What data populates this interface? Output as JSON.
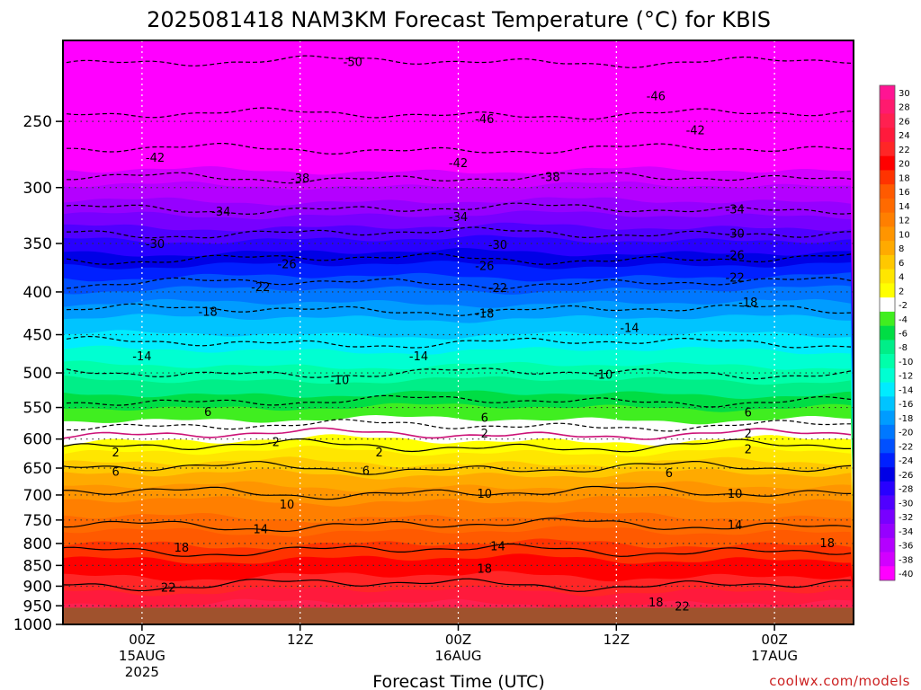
{
  "chart_data": {
    "type": "heatmap",
    "title": "2025081418 NAM3KM Forecast Temperature (°C) for KBIS",
    "xlabel": "Forecast Time (UTC)",
    "ylabel": "",
    "y_scale": "log",
    "ylim": [
      200,
      1000
    ],
    "y_ticks": [
      250,
      300,
      350,
      400,
      450,
      500,
      550,
      600,
      650,
      700,
      750,
      800,
      850,
      900,
      950,
      1000
    ],
    "x_ticks": [
      {
        "line1": "00Z",
        "line2": "15AUG",
        "line3": "2025"
      },
      {
        "line1": "12Z",
        "line2": "",
        "line3": ""
      },
      {
        "line1": "00Z",
        "line2": "16AUG",
        "line3": ""
      },
      {
        "line1": "12Z",
        "line2": "",
        "line3": ""
      },
      {
        "line1": "00Z",
        "line2": "17AUG",
        "line3": ""
      }
    ],
    "x_hours": [
      0,
      12,
      24,
      36,
      48
    ],
    "xlim": [
      -6,
      54
    ],
    "surface_pressure": 955,
    "ground_color": "#a0522d",
    "grid": true,
    "colorbar": {
      "labels": [
        "30",
        "28",
        "26",
        "24",
        "22",
        "20",
        "18",
        "16",
        "14",
        "12",
        "10",
        "8",
        "6",
        "4",
        "2",
        "-2",
        "-4",
        "-6",
        "-8",
        "-10",
        "-12",
        "-14",
        "-16",
        "-18",
        "-20",
        "-22",
        "-24",
        "-26",
        "-28",
        "-30",
        "-32",
        "-34",
        "-36",
        "-38",
        "-40"
      ],
      "colors": [
        "#ff1493",
        "#ff1a6e",
        "#ff2050",
        "#ff1a3c",
        "#ff2626",
        "#ff0000",
        "#ff3300",
        "#ff5a00",
        "#ff6a00",
        "#ff7f00",
        "#ff9500",
        "#ffaa00",
        "#ffc800",
        "#ffe600",
        "#ffff00",
        "#ffffff",
        "#40ee20",
        "#00dd44",
        "#00ee88",
        "#00ffaa",
        "#00ffd2",
        "#00ecff",
        "#00c4ff",
        "#009cff",
        "#0078ff",
        "#0050ff",
        "#0020ff",
        "#0000e6",
        "#2800ff",
        "#5000ff",
        "#7800ff",
        "#9600ff",
        "#b400ff",
        "#d200ff",
        "#ff00ff"
      ]
    },
    "contours": [
      {
        "value": "-50",
        "pressure": 212,
        "dashed": true
      },
      {
        "value": "-46",
        "pressure": 245,
        "dashed": true
      },
      {
        "value": "-42",
        "pressure": 270,
        "dashed": true
      },
      {
        "value": "-38",
        "pressure": 292,
        "dashed": true
      },
      {
        "value": "-34",
        "pressure": 318,
        "dashed": true
      },
      {
        "value": "-30",
        "pressure": 340,
        "dashed": true
      },
      {
        "value": "-26",
        "pressure": 365,
        "dashed": true
      },
      {
        "value": "-22",
        "pressure": 390,
        "dashed": true
      },
      {
        "value": "-18",
        "pressure": 420,
        "dashed": true
      },
      {
        "value": "-14",
        "pressure": 460,
        "dashed": true
      },
      {
        "value": "-10",
        "pressure": 500,
        "dashed": true
      },
      {
        "value": "-6",
        "pressure": 540,
        "dashed": true
      },
      {
        "value": "-2",
        "pressure": 578,
        "dashed": true
      },
      {
        "value": "0",
        "pressure": 592,
        "dashed": false,
        "freezing": true
      },
      {
        "value": "2",
        "pressure": 612,
        "dashed": false
      },
      {
        "value": "6",
        "pressure": 650,
        "dashed": false
      },
      {
        "value": "10",
        "pressure": 695,
        "dashed": false
      },
      {
        "value": "14",
        "pressure": 760,
        "dashed": false
      },
      {
        "value": "18",
        "pressure": 815,
        "dashed": false
      },
      {
        "value": "22",
        "pressure": 895,
        "dashed": false
      }
    ],
    "contour_labels": [
      {
        "text": "-50",
        "hour": 16,
        "pressure": 212
      },
      {
        "text": "-46",
        "hour": 26,
        "pressure": 248
      },
      {
        "text": "-46",
        "hour": 39,
        "pressure": 233
      },
      {
        "text": "-42",
        "hour": 1,
        "pressure": 276
      },
      {
        "text": "-42",
        "hour": 24,
        "pressure": 280
      },
      {
        "text": "-42",
        "hour": 42,
        "pressure": 256
      },
      {
        "text": "-38",
        "hour": 12,
        "pressure": 292
      },
      {
        "text": "-38",
        "hour": 31,
        "pressure": 291
      },
      {
        "text": "-34",
        "hour": 6,
        "pressure": 320
      },
      {
        "text": "-34",
        "hour": 24,
        "pressure": 325
      },
      {
        "text": "-34",
        "hour": 45,
        "pressure": 318
      },
      {
        "text": "-30",
        "hour": 1,
        "pressure": 350
      },
      {
        "text": "-30",
        "hour": 27,
        "pressure": 351
      },
      {
        "text": "-30",
        "hour": 45,
        "pressure": 340
      },
      {
        "text": "-26",
        "hour": 11,
        "pressure": 370
      },
      {
        "text": "-26",
        "hour": 26,
        "pressure": 372
      },
      {
        "text": "-26",
        "hour": 45,
        "pressure": 361
      },
      {
        "text": "-22",
        "hour": 9,
        "pressure": 394
      },
      {
        "text": "-22",
        "hour": 27,
        "pressure": 395
      },
      {
        "text": "-22",
        "hour": 45,
        "pressure": 384
      },
      {
        "text": "-18",
        "hour": 5,
        "pressure": 422
      },
      {
        "text": "-18",
        "hour": 26,
        "pressure": 424
      },
      {
        "text": "-18",
        "hour": 46,
        "pressure": 411
      },
      {
        "text": "-14",
        "hour": 0,
        "pressure": 477
      },
      {
        "text": "-14",
        "hour": 21,
        "pressure": 477
      },
      {
        "text": "-14",
        "hour": 37,
        "pressure": 441
      },
      {
        "text": "-10",
        "hour": 15,
        "pressure": 509
      },
      {
        "text": "-10",
        "hour": 35,
        "pressure": 502
      },
      {
        "text": "6",
        "hour": 5,
        "pressure": 556
      },
      {
        "text": "6",
        "hour": 26,
        "pressure": 565
      },
      {
        "text": "6",
        "hour": 46,
        "pressure": 557
      },
      {
        "text": "-2",
        "hour": 10,
        "pressure": 604
      },
      {
        "text": "2",
        "hour": 26,
        "pressure": 590
      },
      {
        "text": "2",
        "hour": 46,
        "pressure": 590
      },
      {
        "text": "2",
        "hour": -2,
        "pressure": 622
      },
      {
        "text": "2",
        "hour": 18,
        "pressure": 622
      },
      {
        "text": "2",
        "hour": 46,
        "pressure": 616
      },
      {
        "text": "6",
        "hour": -2,
        "pressure": 656
      },
      {
        "text": "6",
        "hour": 17,
        "pressure": 654
      },
      {
        "text": "6",
        "hour": 40,
        "pressure": 658
      },
      {
        "text": "10",
        "hour": 11,
        "pressure": 718
      },
      {
        "text": "10",
        "hour": 26,
        "pressure": 697
      },
      {
        "text": "10",
        "hour": 45,
        "pressure": 697
      },
      {
        "text": "14",
        "hour": 9,
        "pressure": 768
      },
      {
        "text": "14",
        "hour": 27,
        "pressure": 805
      },
      {
        "text": "14",
        "hour": 45,
        "pressure": 760
      },
      {
        "text": "18",
        "hour": 3,
        "pressure": 808
      },
      {
        "text": "18",
        "hour": 26,
        "pressure": 857
      },
      {
        "text": "18",
        "hour": 52,
        "pressure": 798
      },
      {
        "text": "22",
        "hour": 2,
        "pressure": 902
      },
      {
        "text": "18",
        "hour": 39,
        "pressure": 940
      },
      {
        "text": "22",
        "hour": 41,
        "pressure": 950
      }
    ]
  },
  "credit": "coolwx.com/models"
}
